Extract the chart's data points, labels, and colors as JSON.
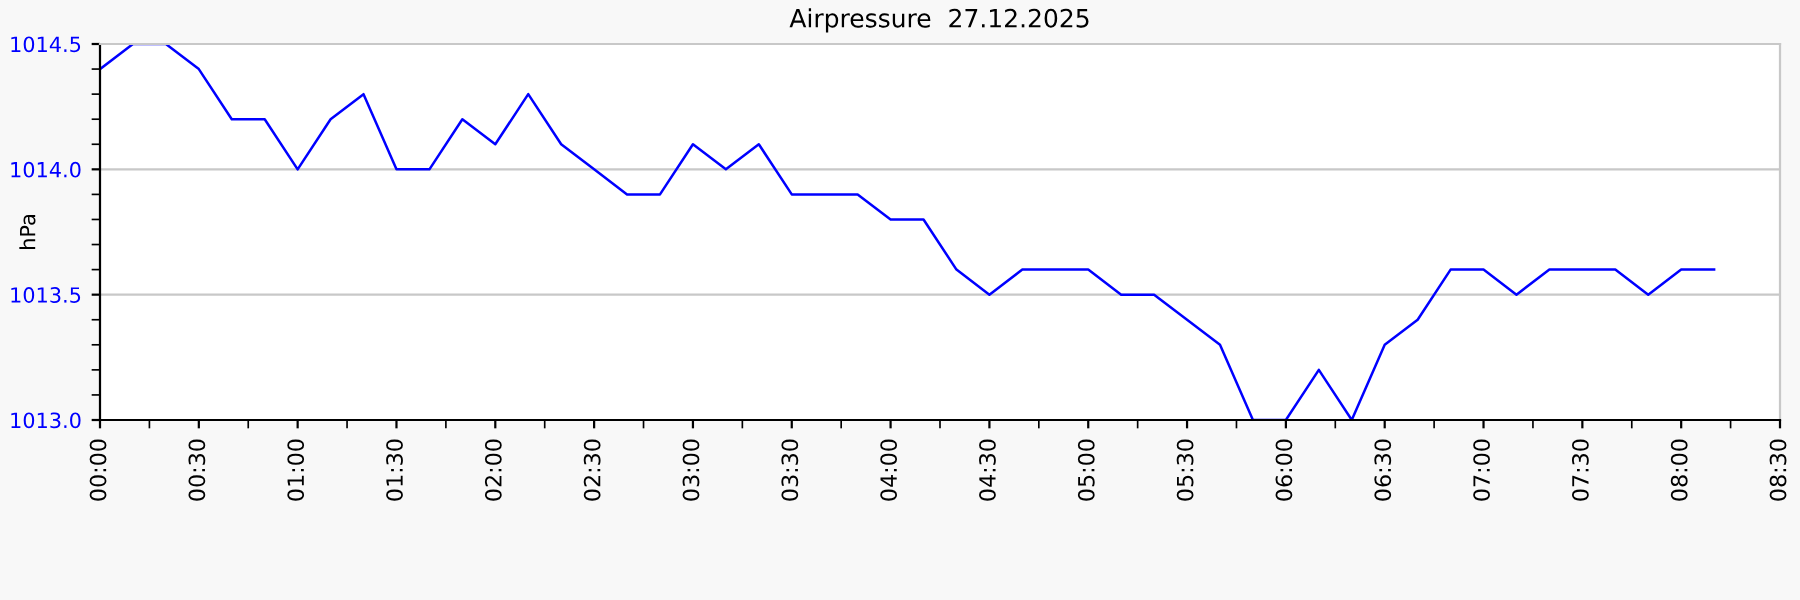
{
  "chart_data": {
    "type": "line",
    "title": "Airpressure  27.12.2025",
    "ylabel": "hPa",
    "x": [
      0,
      0.16667,
      0.33333,
      0.5,
      0.66667,
      0.83333,
      1,
      1.16667,
      1.33333,
      1.5,
      1.66667,
      1.83333,
      2,
      2.16667,
      2.33333,
      2.5,
      2.66667,
      2.83333,
      3,
      3.16667,
      3.33333,
      3.5,
      3.66667,
      3.83333,
      4,
      4.16667,
      4.33333,
      4.5,
      4.66667,
      4.83333,
      5,
      5.16667,
      5.33333,
      5.5,
      5.66667,
      5.83333,
      6,
      6.16667,
      6.33333,
      6.5,
      6.66667,
      6.83333,
      7,
      7.16667,
      7.33333,
      7.5,
      7.66667,
      7.83333,
      8,
      8.16667
    ],
    "series": [
      {
        "color": "#0000ff",
        "values": [
          1014.4,
          1014.5,
          1014.5,
          1014.4,
          1014.2,
          1014.2,
          1014.0,
          1014.2,
          1014.3,
          1014.0,
          1014.0,
          1014.2,
          1014.1,
          1014.3,
          1014.1,
          1014.0,
          1013.9,
          1013.9,
          1014.1,
          1014.0,
          1014.1,
          1013.9,
          1013.9,
          1013.9,
          1013.8,
          1013.8,
          1013.6,
          1013.5,
          1013.6,
          1013.6,
          1013.6,
          1013.5,
          1013.5,
          1013.4,
          1013.3,
          1013.0,
          1013.0,
          1013.2,
          1013.0,
          1013.3,
          1013.4,
          1013.6,
          1013.6,
          1013.5,
          1013.6,
          1013.6,
          1013.6,
          1013.5,
          1013.6,
          1013.6
        ]
      }
    ],
    "xlim": [
      0,
      8.5
    ],
    "xticks": [
      {
        "value": 0,
        "label": "00:00"
      },
      {
        "value": 0.5,
        "label": "00:30"
      },
      {
        "value": 1,
        "label": "01:00"
      },
      {
        "value": 1.5,
        "label": "01:30"
      },
      {
        "value": 2,
        "label": "02:00"
      },
      {
        "value": 2.5,
        "label": "02:30"
      },
      {
        "value": 3,
        "label": "03:00"
      },
      {
        "value": 3.5,
        "label": "03:30"
      },
      {
        "value": 4,
        "label": "04:00"
      },
      {
        "value": 4.5,
        "label": "04:30"
      },
      {
        "value": 5,
        "label": "05:00"
      },
      {
        "value": 5.5,
        "label": "05:30"
      },
      {
        "value": 6,
        "label": "06:00"
      },
      {
        "value": 6.5,
        "label": "06:30"
      },
      {
        "value": 7,
        "label": "07:00"
      },
      {
        "value": 7.5,
        "label": "07:30"
      },
      {
        "value": 8,
        "label": "08:00"
      },
      {
        "value": 8.5,
        "label": "08:30"
      }
    ],
    "ylim": [
      1013.0,
      1014.5
    ],
    "yticks": [
      {
        "value": 1013.0,
        "label": "1013.0"
      },
      {
        "value": 1013.5,
        "label": "1013.5"
      },
      {
        "value": 1014.0,
        "label": "1014.0"
      },
      {
        "value": 1014.5,
        "label": "1014.5"
      }
    ],
    "grid": "y",
    "legend": false,
    "marker": "none",
    "line_style": "solid"
  }
}
